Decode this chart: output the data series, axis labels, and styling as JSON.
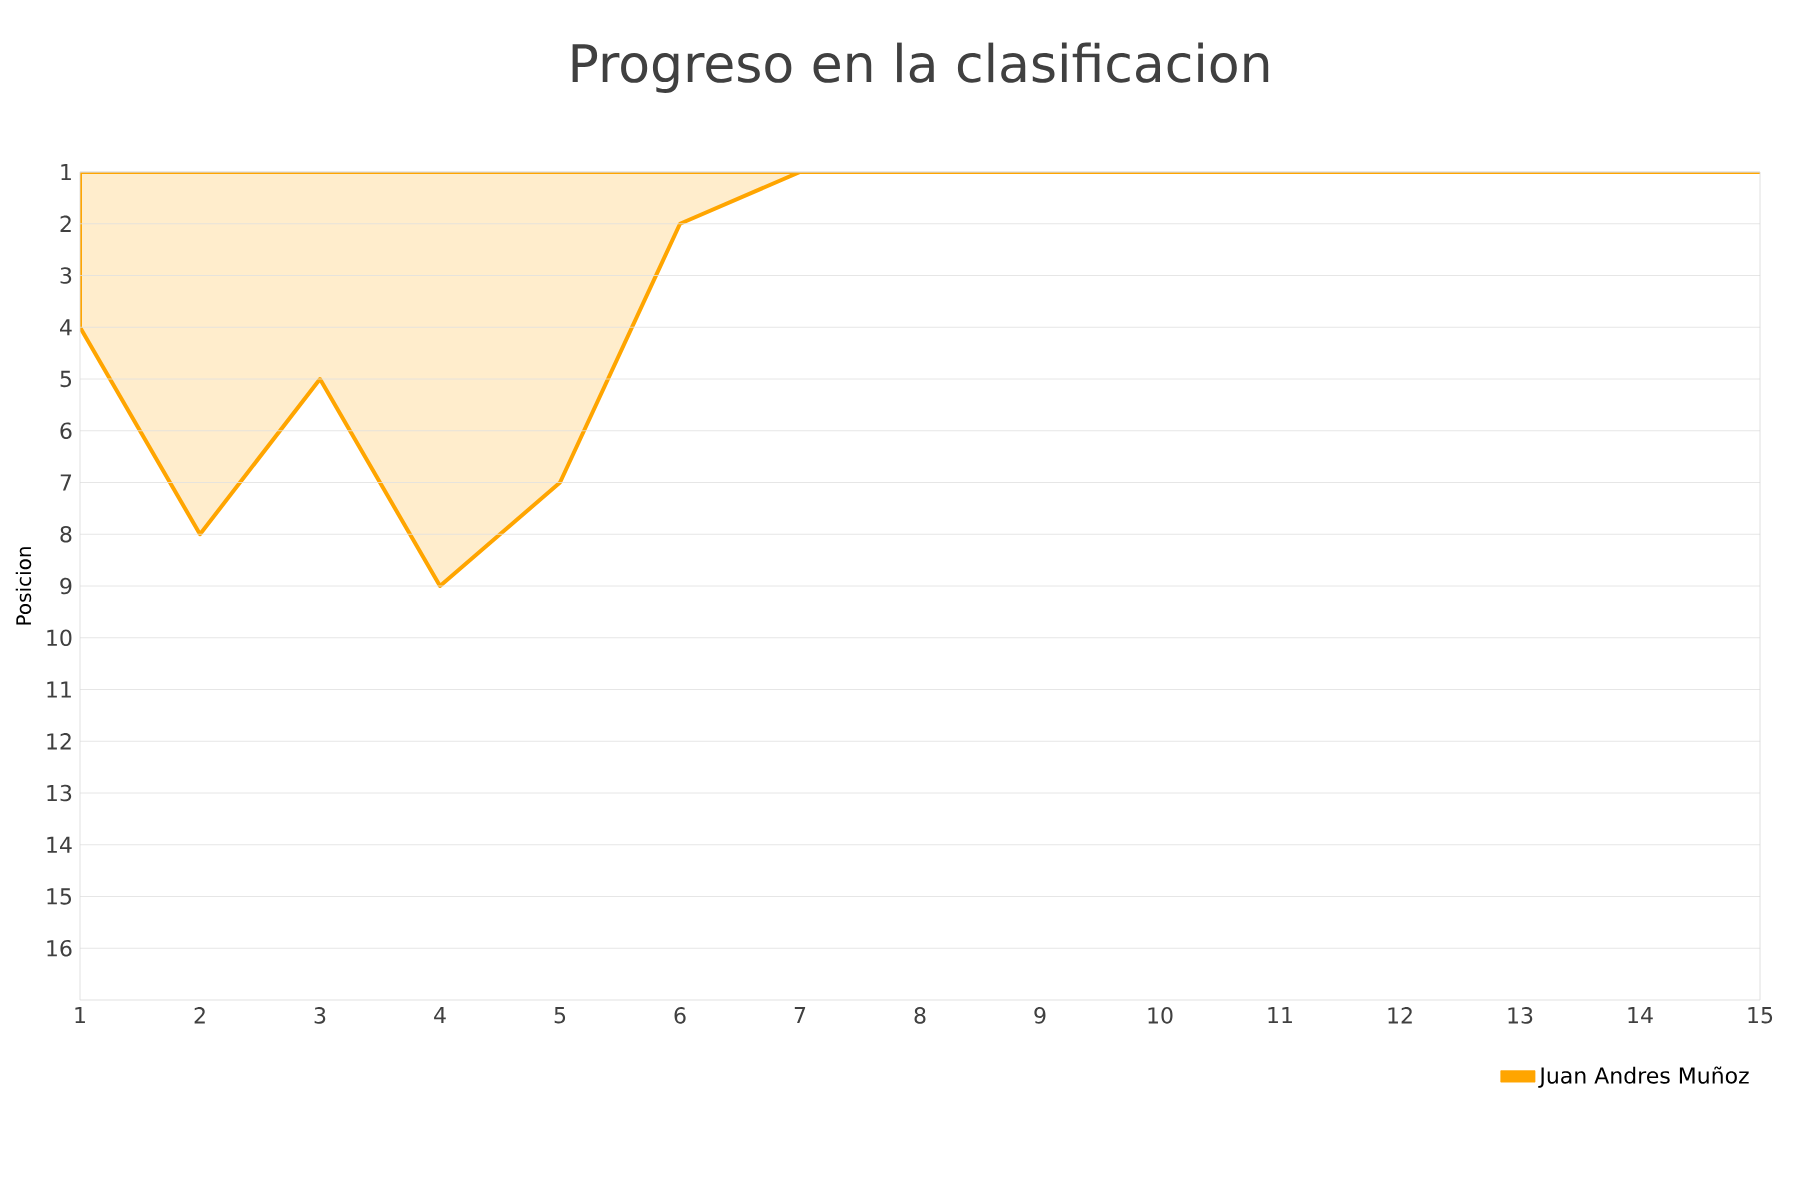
{
  "chart_data": {
    "type": "area",
    "title": "Progreso en la clasificacion",
    "ylabel": "Posicion",
    "x": [
      1,
      2,
      3,
      4,
      5,
      6,
      7,
      8,
      9,
      10,
      11,
      12,
      13,
      14,
      15
    ],
    "series": [
      {
        "name": "Juan Andres Muñoz",
        "color": "#ffa500",
        "values": [
          4,
          8,
          5,
          9,
          7,
          2,
          1,
          1,
          1,
          1,
          1,
          1,
          1,
          1,
          1
        ]
      }
    ],
    "xlim": [
      1,
      15
    ],
    "xticks": [
      1,
      2,
      3,
      4,
      5,
      6,
      7,
      8,
      9,
      10,
      11,
      12,
      13,
      14,
      15
    ],
    "ylim": [
      17,
      1
    ],
    "yticks": [
      1,
      2,
      3,
      4,
      5,
      6,
      7,
      8,
      9,
      10,
      11,
      12,
      13,
      14,
      15,
      16
    ],
    "grid": "y",
    "legend": "bottom right"
  }
}
